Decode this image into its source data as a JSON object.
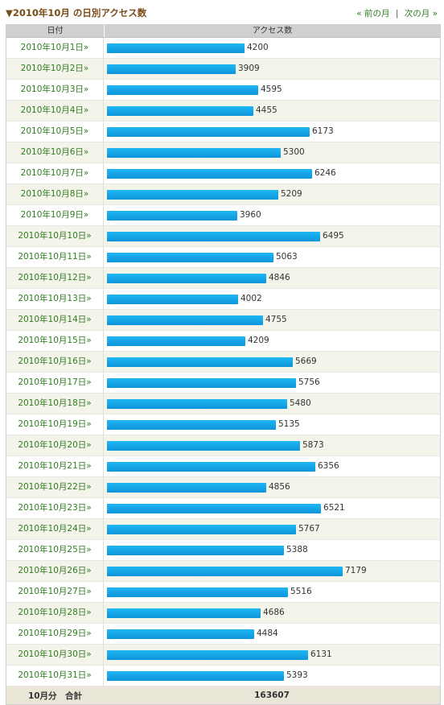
{
  "header": {
    "title": "▼2010年10月 の日別アクセス数",
    "prev_label": "« 前の月",
    "separator": "|",
    "next_label": "次の月 »"
  },
  "table": {
    "col_date": "日付",
    "col_access": "アクセス数",
    "max_value": 7179,
    "rows": [
      {
        "date": "2010年10月1日»",
        "value": 4200
      },
      {
        "date": "2010年10月2日»",
        "value": 3909
      },
      {
        "date": "2010年10月3日»",
        "value": 4595
      },
      {
        "date": "2010年10月4日»",
        "value": 4455
      },
      {
        "date": "2010年10月5日»",
        "value": 6173
      },
      {
        "date": "2010年10月6日»",
        "value": 5300
      },
      {
        "date": "2010年10月7日»",
        "value": 6246
      },
      {
        "date": "2010年10月8日»",
        "value": 5209
      },
      {
        "date": "2010年10月9日»",
        "value": 3960
      },
      {
        "date": "2010年10月10日»",
        "value": 6495
      },
      {
        "date": "2010年10月11日»",
        "value": 5063
      },
      {
        "date": "2010年10月12日»",
        "value": 4846
      },
      {
        "date": "2010年10月13日»",
        "value": 4002
      },
      {
        "date": "2010年10月14日»",
        "value": 4755
      },
      {
        "date": "2010年10月15日»",
        "value": 4209
      },
      {
        "date": "2010年10月16日»",
        "value": 5669
      },
      {
        "date": "2010年10月17日»",
        "value": 5756
      },
      {
        "date": "2010年10月18日»",
        "value": 5480
      },
      {
        "date": "2010年10月19日»",
        "value": 5135
      },
      {
        "date": "2010年10月20日»",
        "value": 5873
      },
      {
        "date": "2010年10月21日»",
        "value": 6356
      },
      {
        "date": "2010年10月22日»",
        "value": 4856
      },
      {
        "date": "2010年10月23日»",
        "value": 6521
      },
      {
        "date": "2010年10月24日»",
        "value": 5767
      },
      {
        "date": "2010年10月25日»",
        "value": 5388
      },
      {
        "date": "2010年10月26日»",
        "value": 7179
      },
      {
        "date": "2010年10月27日»",
        "value": 5516
      },
      {
        "date": "2010年10月28日»",
        "value": 4686
      },
      {
        "date": "2010年10月29日»",
        "value": 4484
      },
      {
        "date": "2010年10月30日»",
        "value": 6131
      },
      {
        "date": "2010年10月31日»",
        "value": 5393
      }
    ],
    "total_label": "10月分　合計",
    "total_value": "163607"
  },
  "colors": {
    "bar": "#129fe3",
    "link": "#2e7d1f",
    "title": "#7a4a18"
  }
}
